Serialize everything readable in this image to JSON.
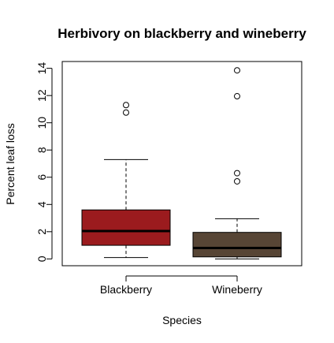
{
  "chart_data": {
    "type": "box",
    "title": "Herbivory on blackberry and wineberry",
    "xlabel": "Species",
    "ylabel": "Percent leaf loss",
    "ylim": [
      -0.5,
      14.5
    ],
    "yticks": [
      0,
      2,
      4,
      6,
      8,
      10,
      12,
      14
    ],
    "grid": false,
    "legend": "none",
    "categories": [
      "Blackberry",
      "Wineberry"
    ],
    "boxes": [
      {
        "category": "Blackberry",
        "whisker_low": 0.1,
        "q1": 1.0,
        "median": 2.05,
        "q3": 3.6,
        "whisker_high": 7.3,
        "outliers": [
          10.75,
          11.3
        ],
        "color": "#9b1b1e"
      },
      {
        "category": "Wineberry",
        "whisker_low": 0.0,
        "q1": 0.15,
        "median": 0.8,
        "q3": 1.95,
        "whisker_high": 2.95,
        "outliers": [
          5.7,
          6.3,
          11.95,
          13.85
        ],
        "color": "#574535"
      }
    ]
  }
}
